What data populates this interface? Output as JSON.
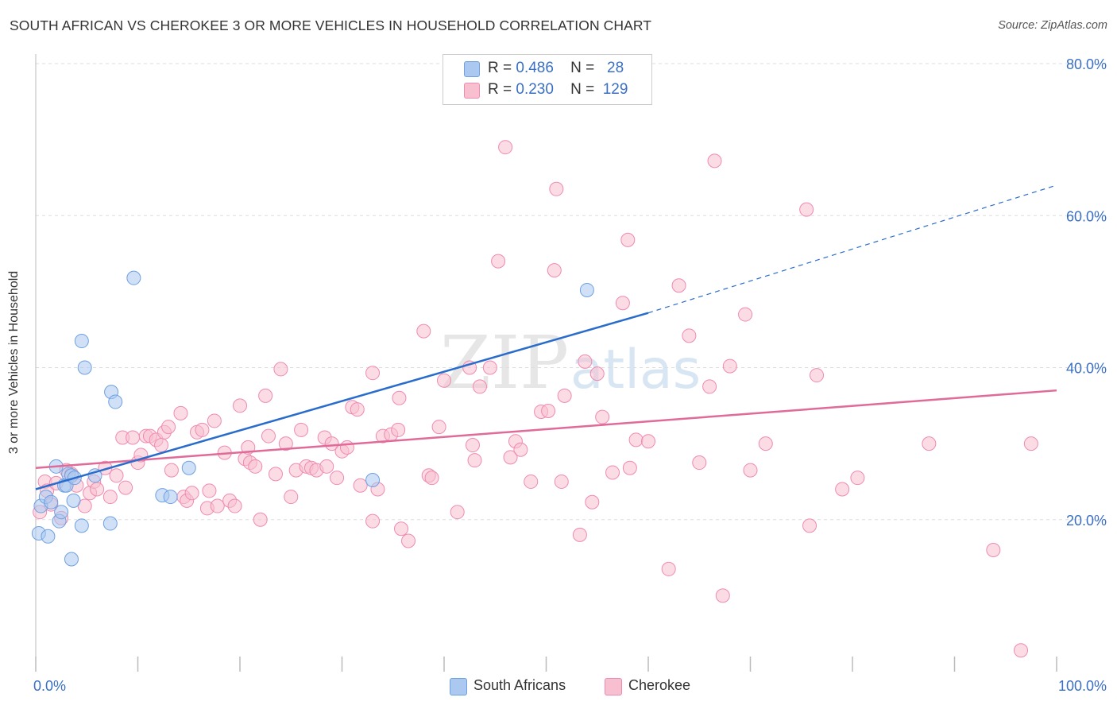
{
  "header": {
    "title": "SOUTH AFRICAN VS CHEROKEE 3 OR MORE VEHICLES IN HOUSEHOLD CORRELATION CHART",
    "source": "Source: ZipAtlas.com"
  },
  "watermark": {
    "zip": "ZIP",
    "atlas": "atlas"
  },
  "stats": [
    {
      "r_label": "R =",
      "r_value": "0.486",
      "n_label": "N =",
      "n_value": "28",
      "color": "#aac8f0"
    },
    {
      "r_label": "R =",
      "r_value": "0.230",
      "n_label": "N =",
      "n_value": "129",
      "color": "#f8bfd0"
    }
  ],
  "legend": [
    {
      "label": "South Africans",
      "color": "#aac8f0"
    },
    {
      "label": "Cherokee",
      "color": "#f8bfd0"
    }
  ],
  "chart_data": {
    "type": "scatter",
    "ylabel": "3 or more Vehicles in Household",
    "xlabel": "",
    "xlim": [
      0,
      100
    ],
    "ylim": [
      0,
      80
    ],
    "x_tick_labels": [
      {
        "value": 0,
        "label": "0.0%"
      },
      {
        "value": 100,
        "label": "100.0%"
      }
    ],
    "y_tick_labels": [
      {
        "value": 20,
        "label": "20.0%"
      },
      {
        "value": 40,
        "label": "40.0%"
      },
      {
        "value": 60,
        "label": "60.0%"
      },
      {
        "value": 80,
        "label": "80.0%"
      }
    ],
    "grid": true,
    "series": [
      {
        "name": "South Africans",
        "color": "#6fa0e0",
        "fill": "#aac8f0",
        "trend": {
          "x0": 0,
          "y0": 24.0,
          "x1": 60,
          "y1": 47.2,
          "dash_to": 100,
          "dash_y": 64.0,
          "color": "#2a6ccc"
        },
        "points": [
          [
            0.3,
            18.2
          ],
          [
            0.5,
            21.8
          ],
          [
            1.2,
            17.8
          ],
          [
            1.0,
            23.0
          ],
          [
            1.5,
            22.3
          ],
          [
            2.0,
            27.0
          ],
          [
            2.3,
            19.8
          ],
          [
            2.5,
            21.0
          ],
          [
            2.8,
            24.5
          ],
          [
            3.0,
            24.5
          ],
          [
            3.2,
            26.0
          ],
          [
            3.5,
            25.8
          ],
          [
            3.8,
            25.5
          ],
          [
            3.7,
            22.5
          ],
          [
            3.5,
            14.8
          ],
          [
            4.5,
            19.2
          ],
          [
            4.5,
            43.5
          ],
          [
            4.8,
            40.0
          ],
          [
            5.8,
            25.8
          ],
          [
            7.3,
            19.5
          ],
          [
            7.4,
            36.8
          ],
          [
            7.8,
            35.5
          ],
          [
            9.6,
            51.8
          ],
          [
            12.4,
            23.2
          ],
          [
            13.2,
            23.0
          ],
          [
            15.0,
            26.8
          ],
          [
            33.0,
            25.2
          ],
          [
            54.0,
            50.2
          ]
        ]
      },
      {
        "name": "Cherokee",
        "color": "#f08ab0",
        "fill": "#f8bfd0",
        "trend": {
          "x0": 0,
          "y0": 26.8,
          "x1": 100,
          "y1": 37.0,
          "color": "#e06a98"
        },
        "points": [
          [
            0.4,
            21.0
          ],
          [
            0.9,
            25.0
          ],
          [
            1.1,
            23.8
          ],
          [
            1.5,
            22.0
          ],
          [
            2.0,
            24.8
          ],
          [
            2.5,
            20.2
          ],
          [
            3.0,
            26.5
          ],
          [
            3.5,
            26.0
          ],
          [
            4.0,
            24.5
          ],
          [
            4.8,
            21.8
          ],
          [
            5.3,
            23.5
          ],
          [
            5.7,
            25.0
          ],
          [
            6.0,
            24.0
          ],
          [
            6.8,
            26.8
          ],
          [
            7.3,
            23.0
          ],
          [
            7.9,
            25.8
          ],
          [
            8.5,
            30.8
          ],
          [
            8.8,
            24.2
          ],
          [
            9.5,
            30.8
          ],
          [
            10.0,
            27.5
          ],
          [
            10.3,
            28.5
          ],
          [
            10.8,
            31.0
          ],
          [
            11.2,
            31.0
          ],
          [
            11.8,
            30.5
          ],
          [
            12.3,
            29.8
          ],
          [
            12.6,
            31.5
          ],
          [
            13.0,
            32.2
          ],
          [
            13.3,
            26.5
          ],
          [
            14.2,
            34.0
          ],
          [
            14.5,
            23.0
          ],
          [
            14.8,
            22.5
          ],
          [
            15.3,
            23.5
          ],
          [
            15.8,
            31.5
          ],
          [
            16.3,
            31.8
          ],
          [
            16.8,
            21.5
          ],
          [
            17.0,
            23.8
          ],
          [
            17.5,
            33.0
          ],
          [
            17.8,
            21.8
          ],
          [
            18.5,
            28.8
          ],
          [
            19.0,
            22.5
          ],
          [
            19.5,
            21.8
          ],
          [
            20.0,
            35.0
          ],
          [
            20.5,
            28.0
          ],
          [
            20.8,
            29.5
          ],
          [
            21.0,
            27.5
          ],
          [
            21.5,
            27.0
          ],
          [
            22.0,
            20.0
          ],
          [
            22.5,
            36.3
          ],
          [
            22.8,
            31.0
          ],
          [
            23.5,
            26.0
          ],
          [
            24.0,
            39.8
          ],
          [
            24.5,
            30.0
          ],
          [
            25.0,
            23.0
          ],
          [
            25.5,
            26.5
          ],
          [
            26.0,
            31.8
          ],
          [
            26.5,
            27.0
          ],
          [
            27.0,
            26.8
          ],
          [
            27.5,
            26.5
          ],
          [
            28.3,
            30.8
          ],
          [
            28.5,
            27.0
          ],
          [
            29.0,
            30.0
          ],
          [
            29.5,
            25.5
          ],
          [
            30.0,
            29.0
          ],
          [
            30.5,
            29.5
          ],
          [
            31.0,
            34.8
          ],
          [
            31.5,
            34.5
          ],
          [
            31.8,
            24.5
          ],
          [
            33.0,
            19.8
          ],
          [
            33.0,
            39.3
          ],
          [
            33.5,
            24.0
          ],
          [
            34.0,
            31.0
          ],
          [
            34.8,
            31.2
          ],
          [
            35.5,
            31.8
          ],
          [
            35.6,
            36.0
          ],
          [
            35.8,
            18.8
          ],
          [
            36.5,
            17.2
          ],
          [
            38.0,
            44.8
          ],
          [
            38.5,
            25.8
          ],
          [
            38.8,
            25.5
          ],
          [
            39.5,
            32.2
          ],
          [
            40.0,
            38.3
          ],
          [
            41.3,
            21.0
          ],
          [
            42.5,
            40.0
          ],
          [
            42.8,
            29.8
          ],
          [
            43.0,
            27.8
          ],
          [
            43.5,
            37.5
          ],
          [
            44.5,
            40.0
          ],
          [
            45.3,
            54.0
          ],
          [
            46.0,
            69.0
          ],
          [
            46.5,
            28.2
          ],
          [
            47.0,
            30.3
          ],
          [
            47.5,
            29.2
          ],
          [
            48.5,
            25.0
          ],
          [
            49.5,
            34.2
          ],
          [
            50.2,
            34.3
          ],
          [
            50.8,
            52.8
          ],
          [
            51.0,
            63.5
          ],
          [
            51.5,
            25.0
          ],
          [
            51.8,
            36.3
          ],
          [
            53.3,
            18.0
          ],
          [
            53.8,
            40.8
          ],
          [
            54.5,
            22.3
          ],
          [
            55.0,
            39.2
          ],
          [
            55.5,
            33.5
          ],
          [
            56.5,
            26.2
          ],
          [
            57.5,
            48.5
          ],
          [
            58.0,
            56.8
          ],
          [
            58.2,
            26.8
          ],
          [
            58.8,
            30.5
          ],
          [
            60.0,
            30.3
          ],
          [
            62.0,
            13.5
          ],
          [
            63.0,
            50.8
          ],
          [
            64.0,
            44.2
          ],
          [
            65.0,
            27.5
          ],
          [
            66.0,
            37.5
          ],
          [
            66.5,
            67.2
          ],
          [
            67.3,
            10.0
          ],
          [
            68.0,
            40.2
          ],
          [
            69.5,
            47.0
          ],
          [
            70.0,
            26.5
          ],
          [
            71.5,
            30.0
          ],
          [
            75.5,
            60.8
          ],
          [
            75.8,
            19.2
          ],
          [
            76.5,
            39.0
          ],
          [
            79.0,
            24.0
          ],
          [
            80.5,
            25.5
          ],
          [
            87.5,
            30.0
          ],
          [
            93.8,
            16.0
          ],
          [
            96.5,
            2.8
          ],
          [
            97.5,
            30.0
          ]
        ]
      }
    ]
  }
}
